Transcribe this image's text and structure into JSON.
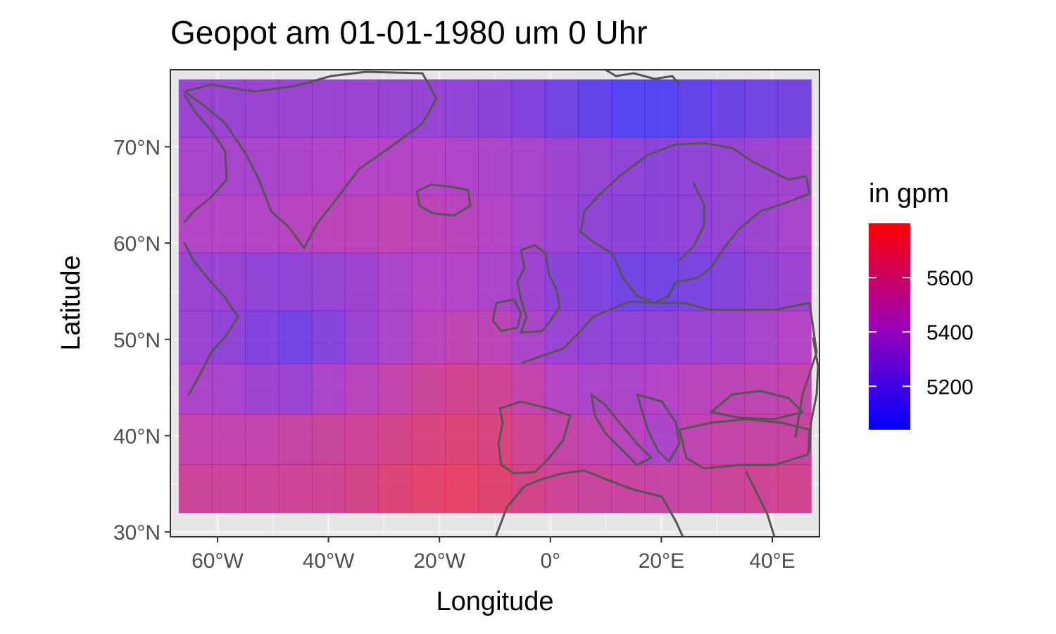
{
  "chart_data": {
    "type": "heatmap",
    "title": "Geopot am 01-01-1980 um 0 Uhr",
    "xlabel": "Longitude",
    "ylabel": "Latitude",
    "xlim": [
      -68.5,
      48.5
    ],
    "ylim": [
      29.5,
      78
    ],
    "x_ticks": [
      -60,
      -40,
      -20,
      0,
      20,
      40
    ],
    "x_tick_labels": [
      "60°W",
      "40°W",
      "20°W",
      "0°",
      "20°E",
      "40°E"
    ],
    "y_ticks": [
      30,
      40,
      50,
      60,
      70
    ],
    "y_tick_labels": [
      "30°N",
      "40°N",
      "50°N",
      "60°N",
      "70°N"
    ],
    "grid": true,
    "lon": [
      -64,
      -58,
      -52,
      -46,
      -40,
      -34,
      -28,
      -22,
      -16,
      -10,
      -4,
      2,
      8,
      14,
      20,
      26,
      32,
      38,
      44
    ],
    "lat": [
      74,
      68,
      62,
      56,
      50,
      45,
      39.5,
      34.5
    ],
    "values": [
      [
        5330,
        5330,
        5330,
        5330,
        5330,
        5330,
        5320,
        5320,
        5300,
        5280,
        5250,
        5200,
        5150,
        5100,
        5100,
        5150,
        5180,
        5200,
        5220
      ],
      [
        5380,
        5380,
        5380,
        5400,
        5410,
        5420,
        5420,
        5420,
        5410,
        5400,
        5380,
        5350,
        5320,
        5300,
        5280,
        5300,
        5320,
        5340,
        5360
      ],
      [
        5420,
        5420,
        5420,
        5440,
        5460,
        5460,
        5480,
        5470,
        5450,
        5420,
        5380,
        5330,
        5300,
        5280,
        5280,
        5300,
        5320,
        5350,
        5380
      ],
      [
        5330,
        5330,
        5300,
        5300,
        5320,
        5350,
        5400,
        5420,
        5420,
        5400,
        5350,
        5280,
        5240,
        5200,
        5200,
        5230,
        5260,
        5300,
        5340
      ],
      [
        5330,
        5300,
        5250,
        5200,
        5260,
        5330,
        5400,
        5450,
        5480,
        5470,
        5400,
        5330,
        5300,
        5300,
        5300,
        5330,
        5350,
        5380,
        5420
      ],
      [
        5400,
        5380,
        5350,
        5330,
        5400,
        5450,
        5500,
        5550,
        5580,
        5570,
        5500,
        5430,
        5400,
        5400,
        5420,
        5450,
        5470,
        5480,
        5500
      ],
      [
        5500,
        5500,
        5500,
        5520,
        5540,
        5560,
        5600,
        5630,
        5650,
        5630,
        5570,
        5510,
        5480,
        5450,
        5400,
        5480,
        5510,
        5520,
        5530
      ],
      [
        5550,
        5550,
        5550,
        5560,
        5570,
        5600,
        5650,
        5680,
        5700,
        5670,
        5600,
        5560,
        5540,
        5530,
        5520,
        5530,
        5550,
        5570,
        5580
      ]
    ],
    "cell_width": 6,
    "colorbar": {
      "title": "in gpm",
      "ticks": [
        5200,
        5400,
        5600
      ],
      "tick_labels": [
        "5200",
        "5400",
        "5600"
      ],
      "min": 5040,
      "max": 5800,
      "low_color": "#0000ff",
      "mid_color": "#9c00b8",
      "high_color": "#ff0000"
    },
    "panel_background": "#e6e6e6",
    "gridline_color": "#f2f2f2",
    "coastline_color": "#555555",
    "tile_alpha": 0.7
  }
}
